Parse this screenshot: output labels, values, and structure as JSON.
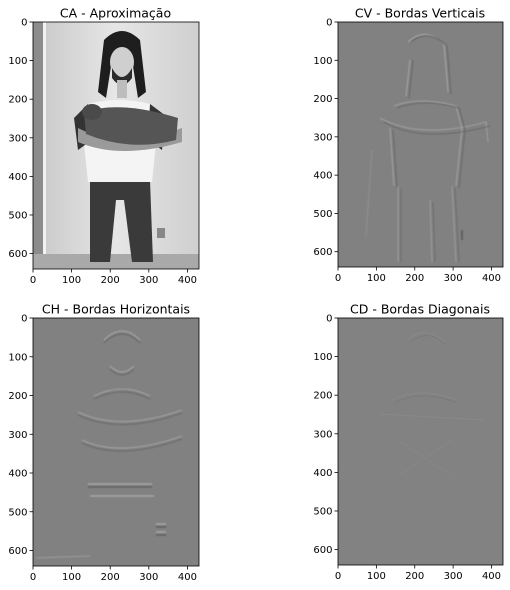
{
  "chart_data": [
    {
      "type": "image",
      "title": "CA - Aproximação",
      "xlim": [
        0,
        430
      ],
      "ylim": [
        640,
        0
      ],
      "xticks": [
        0,
        100,
        200,
        300,
        400
      ],
      "yticks": [
        0,
        100,
        200,
        300,
        400,
        500,
        600
      ],
      "content": "grayscale photo approximation coefficients (person holding cat)",
      "colormap": "gray"
    },
    {
      "type": "image",
      "title": "CV - Bordas Verticais",
      "xlim": [
        0,
        430
      ],
      "ylim": [
        640,
        0
      ],
      "xticks": [
        0,
        100,
        200,
        300,
        400
      ],
      "yticks": [
        0,
        100,
        200,
        300,
        400,
        500,
        600
      ],
      "content": "vertical detail coefficients (embossed edges on gray)",
      "colormap": "gray"
    },
    {
      "type": "image",
      "title": "CH - Bordas Horizontais",
      "xlim": [
        0,
        430
      ],
      "ylim": [
        640,
        0
      ],
      "xticks": [
        0,
        100,
        200,
        300,
        400
      ],
      "yticks": [
        0,
        100,
        200,
        300,
        400,
        500,
        600
      ],
      "content": "horizontal detail coefficients (embossed edges on gray)",
      "colormap": "gray"
    },
    {
      "type": "image",
      "title": "CD - Bordas Diagonais",
      "xlim": [
        0,
        430
      ],
      "ylim": [
        640,
        0
      ],
      "xticks": [
        0,
        100,
        200,
        300,
        400
      ],
      "yticks": [
        0,
        100,
        200,
        300,
        400,
        500,
        600
      ],
      "content": "diagonal detail coefficients (faint texture on gray)",
      "colormap": "gray"
    }
  ],
  "colors": {
    "background": "#ffffff",
    "detail_gray": "#818181",
    "photo_wall": "#d9d9d9",
    "photo_dark": "#2a2a2a"
  }
}
